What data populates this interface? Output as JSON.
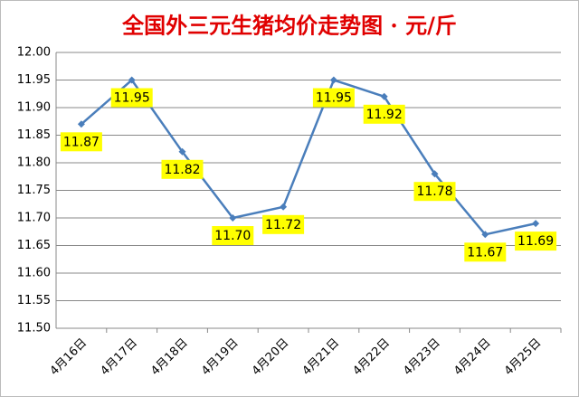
{
  "chart_data": {
    "type": "line",
    "title": "全国外三元生猪均价走势图 · 元/斤",
    "categories": [
      "4月16日",
      "4月17日",
      "4月18日",
      "4月19日",
      "4月20日",
      "4月21日",
      "4月22日",
      "4月23日",
      "4月24日",
      "4月25日"
    ],
    "values": [
      11.87,
      11.95,
      11.82,
      11.7,
      11.72,
      11.95,
      11.92,
      11.78,
      11.67,
      11.69
    ],
    "value_labels": [
      "11.87",
      "11.95",
      "11.82",
      "11.70",
      "11.72",
      "11.95",
      "11.92",
      "11.78",
      "11.67",
      "11.69"
    ],
    "color": "#4a7ebb",
    "label_color": "#ffff00",
    "ylim": [
      11.5,
      12.0
    ],
    "yticks": [
      {
        "value": 11.5,
        "label": "11.50"
      },
      {
        "value": 11.55,
        "label": "11.55"
      },
      {
        "value": 11.6,
        "label": "11.60"
      },
      {
        "value": 11.65,
        "label": "11.65"
      },
      {
        "value": 11.7,
        "label": "11.70"
      },
      {
        "value": 11.75,
        "label": "11.75"
      },
      {
        "value": 11.8,
        "label": "11.80"
      },
      {
        "value": 11.85,
        "label": "11.85"
      },
      {
        "value": 11.9,
        "label": "11.90"
      },
      {
        "value": 11.95,
        "label": "11.95"
      },
      {
        "value": 12.0,
        "label": "12.00"
      }
    ],
    "grid": true
  }
}
